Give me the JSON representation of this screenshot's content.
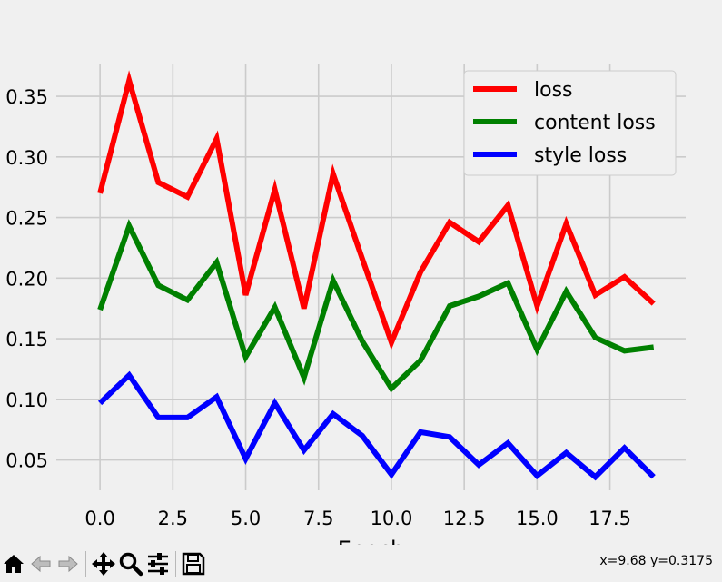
{
  "chart_data": {
    "type": "line",
    "x": [
      0,
      1,
      2,
      3,
      4,
      5,
      6,
      7,
      8,
      9,
      10,
      11,
      12,
      13,
      14,
      15,
      16,
      17,
      18,
      19
    ],
    "series": [
      {
        "name": "loss",
        "color": "#ff0000",
        "values": [
          0.27,
          0.363,
          0.279,
          0.267,
          0.315,
          0.186,
          0.273,
          0.175,
          0.286,
          0.216,
          0.147,
          0.205,
          0.246,
          0.23,
          0.26,
          0.177,
          0.245,
          0.186,
          0.201,
          0.179
        ]
      },
      {
        "name": "content loss",
        "color": "#008000",
        "values": [
          0.174,
          0.243,
          0.194,
          0.182,
          0.213,
          0.135,
          0.176,
          0.118,
          0.198,
          0.148,
          0.109,
          0.132,
          0.177,
          0.185,
          0.196,
          0.141,
          0.189,
          0.151,
          0.14,
          0.143
        ]
      },
      {
        "name": "style loss",
        "color": "#0000ff",
        "values": [
          0.097,
          0.12,
          0.085,
          0.085,
          0.102,
          0.051,
          0.097,
          0.058,
          0.088,
          0.07,
          0.038,
          0.073,
          0.069,
          0.046,
          0.064,
          0.037,
          0.056,
          0.036,
          0.06,
          0.036
        ]
      }
    ],
    "xlim": [
      -1.5,
      20.1
    ],
    "ylim": [
      0.025,
      0.377
    ],
    "xticks": [
      0.0,
      2.5,
      5.0,
      7.5,
      10.0,
      12.5,
      15.0,
      17.5
    ],
    "xtick_labels": [
      "0.0",
      "2.5",
      "5.0",
      "7.5",
      "10.0",
      "12.5",
      "15.0",
      "17.5"
    ],
    "yticks": [
      0.05,
      0.1,
      0.15,
      0.2,
      0.25,
      0.3,
      0.35
    ],
    "ytick_labels": [
      "0.05",
      "0.10",
      "0.15",
      "0.20",
      "0.25",
      "0.30",
      "0.35"
    ],
    "xlabel": "Epoch",
    "ylabel": "",
    "title": "",
    "grid": true,
    "legend_position": "top-right"
  },
  "toolbar": {
    "icons": [
      "home-icon",
      "back-icon",
      "forward-icon",
      "pan-icon",
      "zoom-icon",
      "configure-icon",
      "save-icon"
    ],
    "coordinates": "x=9.68 y=0.3175"
  }
}
